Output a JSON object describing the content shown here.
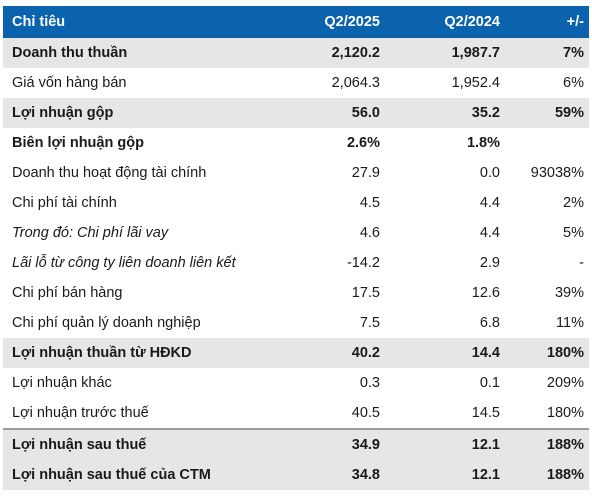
{
  "table": {
    "headers": [
      "Chỉ tiêu",
      "Q2/2025",
      "Q2/2024",
      "+/-"
    ],
    "rows": [
      {
        "label": "Doanh thu thuần",
        "q2_2025": "2,120.2",
        "q2_2024": "1,987.7",
        "change": "7%",
        "style": "bold",
        "shaded": true
      },
      {
        "label": "Giá vốn hàng bán",
        "q2_2025": "2,064.3",
        "q2_2024": "1,952.4",
        "change": "6%",
        "style": "normal",
        "shaded": false
      },
      {
        "label": "Lợi nhuận gộp",
        "q2_2025": "56.0",
        "q2_2024": "35.2",
        "change": "59%",
        "style": "bold",
        "shaded": true
      },
      {
        "label": "Biên lợi nhuận gộp",
        "q2_2025": "2.6%",
        "q2_2024": "1.8%",
        "change": "",
        "style": "bold",
        "shaded": false
      },
      {
        "label": "Doanh thu hoạt động tài chính",
        "q2_2025": "27.9",
        "q2_2024": "0.0",
        "change": "93038%",
        "style": "normal",
        "shaded": false
      },
      {
        "label": "Chi phí tài chính",
        "q2_2025": "4.5",
        "q2_2024": "4.4",
        "change": "2%",
        "style": "normal",
        "shaded": false
      },
      {
        "label": "Trong đó: Chi phí lãi vay",
        "q2_2025": "4.6",
        "q2_2024": "4.4",
        "change": "5%",
        "style": "italic",
        "shaded": false
      },
      {
        "label": "Lãi lỗ từ công ty liên doanh liên kết",
        "q2_2025": "-14.2",
        "q2_2024": "2.9",
        "change": "-",
        "style": "italic",
        "shaded": false
      },
      {
        "label": "Chi phí bán hàng",
        "q2_2025": "17.5",
        "q2_2024": "12.6",
        "change": "39%",
        "style": "normal",
        "shaded": false
      },
      {
        "label": "Chi phí quản lý doanh nghiệp",
        "q2_2025": "7.5",
        "q2_2024": "6.8",
        "change": "11%",
        "style": "normal",
        "shaded": false
      },
      {
        "label": "Lợi nhuận thuần từ HĐKD",
        "q2_2025": "40.2",
        "q2_2024": "14.4",
        "change": "180%",
        "style": "bold",
        "shaded": true
      },
      {
        "label": "Lợi nhuận khác",
        "q2_2025": "0.3",
        "q2_2024": "0.1",
        "change": "209%",
        "style": "normal",
        "shaded": false
      },
      {
        "label": "Lợi nhuận trước thuế",
        "q2_2025": "40.5",
        "q2_2024": "14.5",
        "change": "180%",
        "style": "normal",
        "shaded": false
      },
      {
        "label": "Lợi nhuận sau thuế",
        "q2_2025": "34.9",
        "q2_2024": "12.1",
        "change": "188%",
        "style": "bold",
        "shaded": true
      },
      {
        "label": "Lợi nhuận sau thuế của CTM",
        "q2_2025": "34.8",
        "q2_2024": "12.1",
        "change": "188%",
        "style": "bold",
        "shaded": true
      }
    ]
  },
  "colors": {
    "header_bg": "#0b63ad",
    "header_text": "#ffffff",
    "shaded_row_bg": "#e6e6e6",
    "separator": "#9a9a9a"
  }
}
